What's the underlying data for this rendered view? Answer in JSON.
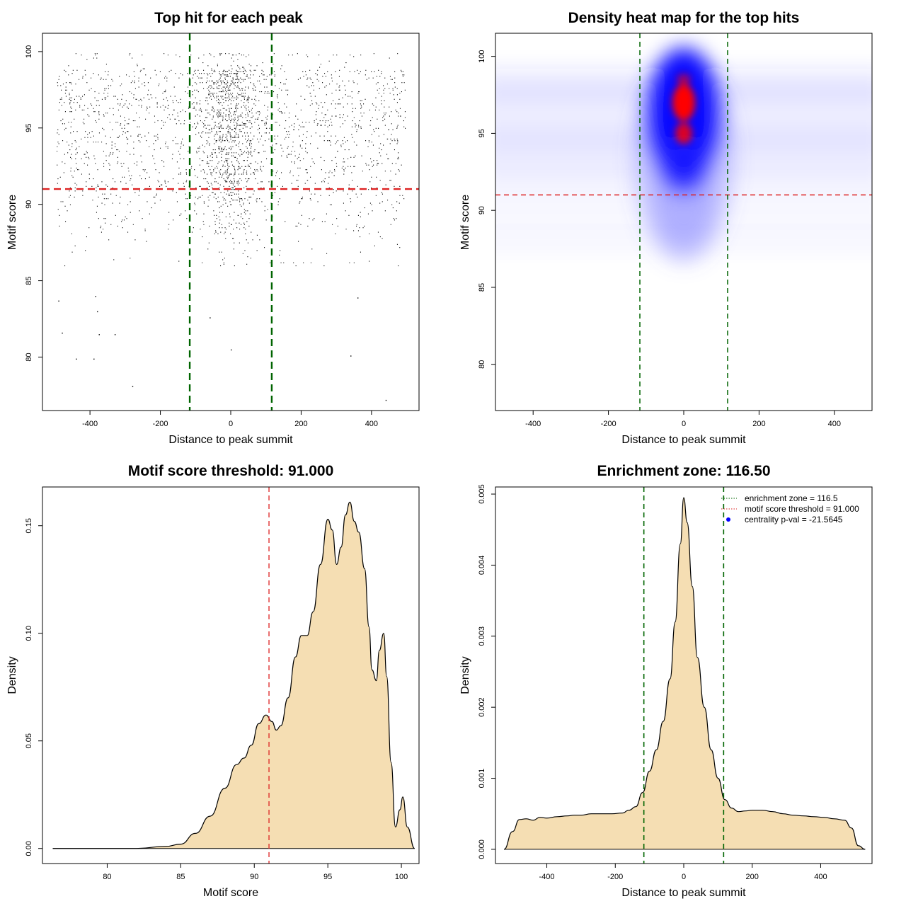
{
  "charts": [
    {
      "id": "scatter",
      "title": "Top hit for each peak",
      "xlabel": "Distance to peak summit",
      "ylabel": "Motif score",
      "xticks": [
        -400,
        -200,
        0,
        200,
        400
      ],
      "yticks": [
        80,
        85,
        90,
        95,
        100
      ]
    },
    {
      "id": "heatmap",
      "title": "Density heat map for the top hits",
      "xlabel": "Distance to peak summit",
      "ylabel": "Motif score",
      "xticks": [
        -400,
        -200,
        0,
        200,
        400
      ],
      "yticks": [
        80,
        85,
        90,
        95,
        100
      ]
    },
    {
      "id": "score-density",
      "title": "Motif score threshold: 91.000",
      "xlabel": "Motif score",
      "ylabel": "Density",
      "xticks": [
        80,
        85,
        90,
        95,
        100
      ],
      "yticks": [
        "0.00",
        "0.05",
        "0.10",
        "0.15"
      ]
    },
    {
      "id": "distance-density",
      "title": "Enrichment zone: 116.50",
      "xlabel": "Distance to peak summit",
      "ylabel": "Density",
      "xticks": [
        -400,
        -200,
        0,
        200,
        400
      ],
      "yticks": [
        "0.000",
        "0.001",
        "0.002",
        "0.003",
        "0.004",
        "0.005"
      ],
      "legend": [
        {
          "label": "enrichment zone = 116.5",
          "color": "#006400",
          "style": "dotted"
        },
        {
          "label": "motif score threshold = 91.000",
          "color": "#dd2222",
          "style": "dotted"
        },
        {
          "label": "centrality p-val = -21.5645",
          "color": "#0000ff",
          "style": "point"
        }
      ]
    }
  ],
  "chart_data": [
    {
      "type": "scatter",
      "title": "Top hit for each peak",
      "xlabel": "Distance to peak summit",
      "ylabel": "Motif score",
      "xlim": [
        -535,
        535
      ],
      "ylim": [
        76.5,
        101.2
      ],
      "threshold_y": 91.0,
      "enrichment_x": [
        -116.5,
        116.5
      ],
      "point_distribution": "x spans -500..500, concentrated within the enrichment zone; y mostly 86..100, sparse below 86",
      "outliers": [
        [
          -490,
          83.7
        ],
        [
          -480,
          81.6
        ],
        [
          -385,
          84.0
        ],
        [
          -380,
          83.0
        ],
        [
          -375,
          81.5
        ],
        [
          -330,
          81.5
        ],
        [
          -440,
          79.9
        ],
        [
          -390,
          79.9
        ],
        [
          -280,
          78.1
        ],
        [
          -60,
          82.6
        ],
        [
          0,
          80.5
        ],
        [
          340,
          80.1
        ],
        [
          360,
          83.9
        ],
        [
          440,
          77.2
        ]
      ],
      "colors": {
        "points": "#000000",
        "threshold": "#dd2222",
        "zone": "#006400"
      }
    },
    {
      "type": "heatmap",
      "title": "Density heat map for the top hits",
      "xlabel": "Distance to peak summit",
      "ylabel": "Motif score",
      "xlim": [
        -500,
        500
      ],
      "ylim": [
        77,
        101.5
      ],
      "threshold_y": 91.0,
      "enrichment_x": [
        -116.5,
        116.5
      ],
      "hotspots": [
        {
          "x": 0,
          "y": 97.0,
          "level": "max"
        },
        {
          "x": 0,
          "y": 95.0,
          "level": "high"
        },
        {
          "x": 0,
          "y": 98.5,
          "level": "mid"
        }
      ],
      "colors": {
        "low": "#ffffff",
        "mid": "#0000ff",
        "high": "#ff0000"
      }
    },
    {
      "type": "area",
      "title": "Motif score threshold: 91.000",
      "xlabel": "Motif score",
      "ylabel": "Density",
      "xlim": [
        75.6,
        101.2
      ],
      "ylim": [
        -0.007,
        0.168
      ],
      "threshold_x": 91.0,
      "x": [
        76.3,
        80,
        82,
        84,
        85,
        86,
        87,
        88,
        88.8,
        89.3,
        89.8,
        90.3,
        90.8,
        91.2,
        91.5,
        91.8,
        92.3,
        92.8,
        93.2,
        93.6,
        94.0,
        94.5,
        95.0,
        95.3,
        95.6,
        95.9,
        96.2,
        96.5,
        96.8,
        97.1,
        97.5,
        97.8,
        98.0,
        98.3,
        98.5,
        98.8,
        99.0,
        99.3,
        99.6,
        99.9,
        100.1,
        100.4,
        100.9
      ],
      "values": [
        0.0,
        0.0,
        0.0,
        0.001,
        0.002,
        0.007,
        0.015,
        0.028,
        0.039,
        0.042,
        0.048,
        0.058,
        0.062,
        0.059,
        0.055,
        0.057,
        0.07,
        0.089,
        0.099,
        0.099,
        0.11,
        0.132,
        0.153,
        0.148,
        0.132,
        0.14,
        0.155,
        0.161,
        0.152,
        0.147,
        0.13,
        0.103,
        0.083,
        0.078,
        0.092,
        0.1,
        0.08,
        0.04,
        0.01,
        0.018,
        0.024,
        0.01,
        0.0
      ],
      "colors": {
        "fill": "#f5deb3",
        "line": "#000000",
        "threshold": "#dd2222"
      }
    },
    {
      "type": "area",
      "title": "Enrichment zone: 116.50",
      "xlabel": "Distance to peak summit",
      "ylabel": "Density",
      "xlim": [
        -550,
        550
      ],
      "ylim": [
        -0.0002,
        0.0051
      ],
      "enrichment_x": [
        -116.5,
        116.5
      ],
      "x": [
        -525,
        -500,
        -480,
        -460,
        -440,
        -420,
        -400,
        -370,
        -340,
        -320,
        -300,
        -270,
        -240,
        -210,
        -180,
        -160,
        -140,
        -120,
        -100,
        -80,
        -60,
        -40,
        -25,
        -10,
        0,
        10,
        25,
        40,
        60,
        80,
        100,
        120,
        140,
        160,
        180,
        200,
        230,
        260,
        290,
        320,
        350,
        380,
        410,
        440,
        470,
        490,
        510,
        530
      ],
      "values": [
        0.0,
        0.00025,
        0.00042,
        0.00043,
        0.00041,
        0.00045,
        0.00044,
        0.00046,
        0.00047,
        0.00048,
        0.00048,
        0.0005,
        0.0005,
        0.0005,
        0.00051,
        0.00055,
        0.0006,
        0.0008,
        0.0011,
        0.0014,
        0.0018,
        0.0024,
        0.0032,
        0.0043,
        0.00495,
        0.0046,
        0.0037,
        0.0027,
        0.002,
        0.0014,
        0.001,
        0.0007,
        0.00058,
        0.00053,
        0.00054,
        0.00055,
        0.00055,
        0.00053,
        0.0005,
        0.00048,
        0.00047,
        0.00046,
        0.00045,
        0.00043,
        0.00041,
        0.0003,
        5e-05,
        0.0
      ],
      "colors": {
        "fill": "#f5deb3",
        "line": "#000000",
        "zone": "#006400"
      }
    }
  ]
}
